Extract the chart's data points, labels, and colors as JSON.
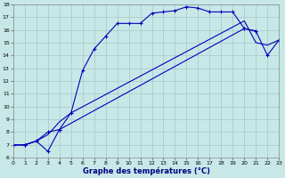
{
  "xlabel": "Graphe des températures (°C)",
  "background_color": "#c8e8e8",
  "line_color": "#0000bb",
  "grid_color": "#a8c8c8",
  "xlim": [
    0,
    23
  ],
  "ylim": [
    6,
    18
  ],
  "yticks": [
    6,
    7,
    8,
    9,
    10,
    11,
    12,
    13,
    14,
    15,
    16,
    17,
    18
  ],
  "xticks": [
    0,
    1,
    2,
    3,
    4,
    5,
    6,
    7,
    8,
    9,
    10,
    11,
    12,
    13,
    14,
    15,
    16,
    17,
    18,
    19,
    20,
    21,
    22,
    23
  ],
  "line1_x": [
    0,
    1,
    2,
    3,
    4,
    5,
    6,
    7,
    8,
    9,
    10,
    11,
    12,
    13,
    14,
    15,
    16,
    17,
    18,
    19,
    20,
    21
  ],
  "line1_y": [
    7.0,
    7.0,
    7.3,
    8.0,
    8.2,
    9.5,
    12.8,
    14.5,
    15.5,
    16.5,
    16.5,
    16.5,
    17.3,
    17.4,
    17.5,
    17.8,
    17.7,
    17.4,
    17.4,
    17.4,
    16.1,
    15.9
  ],
  "line2_x": [
    0,
    1,
    2,
    3,
    4,
    20,
    21,
    22,
    23
  ],
  "line2_y": [
    7.0,
    7.0,
    7.3,
    6.5,
    8.2,
    16.1,
    15.9,
    14.0,
    15.2
  ],
  "line3_x": [
    0,
    1,
    2,
    3,
    4,
    5,
    20,
    21,
    22,
    23
  ],
  "line3_y": [
    7.0,
    7.0,
    7.3,
    7.8,
    8.8,
    9.5,
    16.7,
    15.0,
    14.8,
    15.2
  ]
}
